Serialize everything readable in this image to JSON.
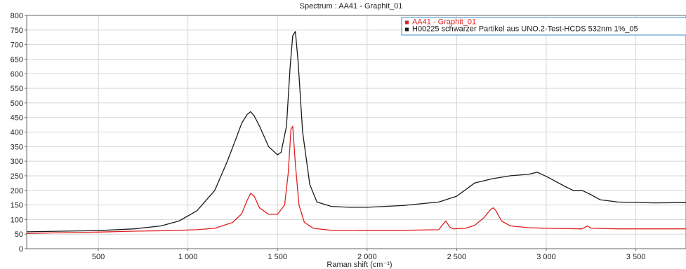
{
  "chart_data": {
    "type": "line",
    "title": "Spectrum : AA41   -   Graphit_01",
    "xlabel": "Raman shift (cm⁻¹)",
    "ylabel": "",
    "xlim": [
      100,
      3780
    ],
    "ylim": [
      0,
      800
    ],
    "x_ticks": [
      500,
      1000,
      1500,
      2000,
      2500,
      3000,
      3500
    ],
    "x_tick_labels": [
      "500",
      "1 000",
      "1 500",
      "2 000",
      "2 500",
      "3 000",
      "3 500"
    ],
    "y_ticks": [
      0,
      50,
      100,
      150,
      200,
      250,
      300,
      350,
      400,
      450,
      500,
      550,
      600,
      650,
      700,
      750,
      800
    ],
    "y_tick_labels": [
      "0",
      "50",
      "100",
      "150",
      "200",
      "250",
      "300",
      "350",
      "400",
      "450",
      "500",
      "550",
      "600",
      "650",
      "700",
      "750",
      "800"
    ],
    "grid": true,
    "legend_position": "top-right",
    "series": [
      {
        "name": "AA41   -   Graphit_01",
        "color": "#e02020",
        "x": [
          100,
          300,
          500,
          700,
          900,
          1050,
          1150,
          1250,
          1300,
          1330,
          1350,
          1370,
          1400,
          1450,
          1500,
          1540,
          1560,
          1575,
          1585,
          1600,
          1620,
          1650,
          1700,
          1800,
          2000,
          2200,
          2400,
          2425,
          2440,
          2460,
          2480,
          2550,
          2600,
          2650,
          2690,
          2705,
          2720,
          2750,
          2800,
          2900,
          3000,
          3200,
          3230,
          3250,
          3400,
          3600,
          3780
        ],
        "values": [
          52,
          55,
          57,
          60,
          62,
          65,
          70,
          90,
          120,
          165,
          190,
          180,
          140,
          118,
          118,
          150,
          260,
          410,
          420,
          290,
          150,
          90,
          70,
          63,
          62,
          63,
          65,
          85,
          95,
          75,
          68,
          70,
          80,
          105,
          135,
          140,
          130,
          95,
          78,
          72,
          70,
          68,
          78,
          70,
          68,
          68,
          68
        ]
      },
      {
        "name": "H00225 schwarzer Partikel aus UNO.2-Test-HCDS   532nm   1%_05",
        "color": "#1a1a1a",
        "x": [
          100,
          300,
          500,
          700,
          850,
          950,
          1050,
          1150,
          1220,
          1270,
          1300,
          1330,
          1350,
          1370,
          1400,
          1450,
          1500,
          1520,
          1550,
          1570,
          1585,
          1600,
          1615,
          1640,
          1680,
          1720,
          1800,
          1900,
          2000,
          2200,
          2400,
          2500,
          2600,
          2700,
          2800,
          2900,
          2950,
          3000,
          3100,
          3150,
          3200,
          3250,
          3300,
          3400,
          3600,
          3780
        ],
        "values": [
          58,
          60,
          62,
          68,
          78,
          95,
          130,
          200,
          300,
          380,
          430,
          460,
          470,
          455,
          420,
          350,
          322,
          330,
          420,
          620,
          730,
          745,
          640,
          400,
          220,
          160,
          145,
          142,
          142,
          148,
          160,
          180,
          225,
          240,
          250,
          255,
          262,
          248,
          215,
          200,
          200,
          185,
          168,
          160,
          157,
          158
        ]
      }
    ]
  }
}
